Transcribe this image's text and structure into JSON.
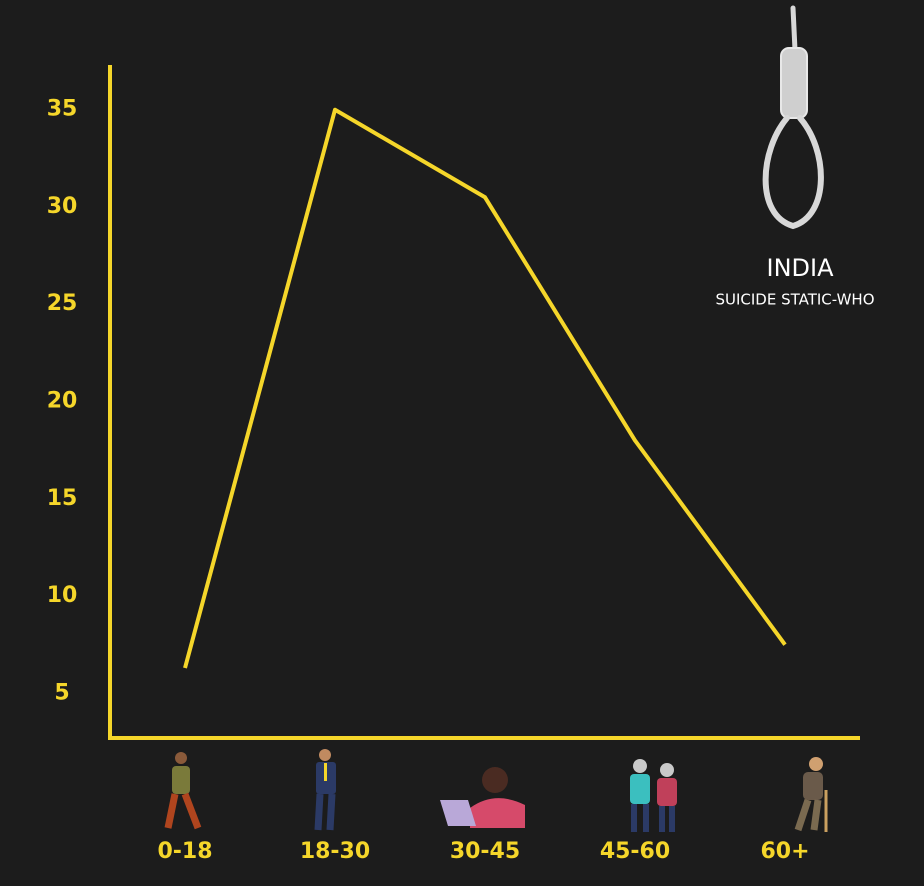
{
  "chart_data": {
    "type": "line",
    "title": "INDIA",
    "subtitle": "SUICIDE STATIC-WHO",
    "categories": [
      "0-18",
      "18-30",
      "30-45",
      "45-60",
      "60+"
    ],
    "values": [
      6.3,
      35,
      30.5,
      18,
      7.5
    ],
    "color": "#f5d62a",
    "ylim": [
      2.7,
      37.3
    ],
    "yticks": [
      5,
      10,
      15,
      20,
      25,
      30,
      35
    ]
  }
}
